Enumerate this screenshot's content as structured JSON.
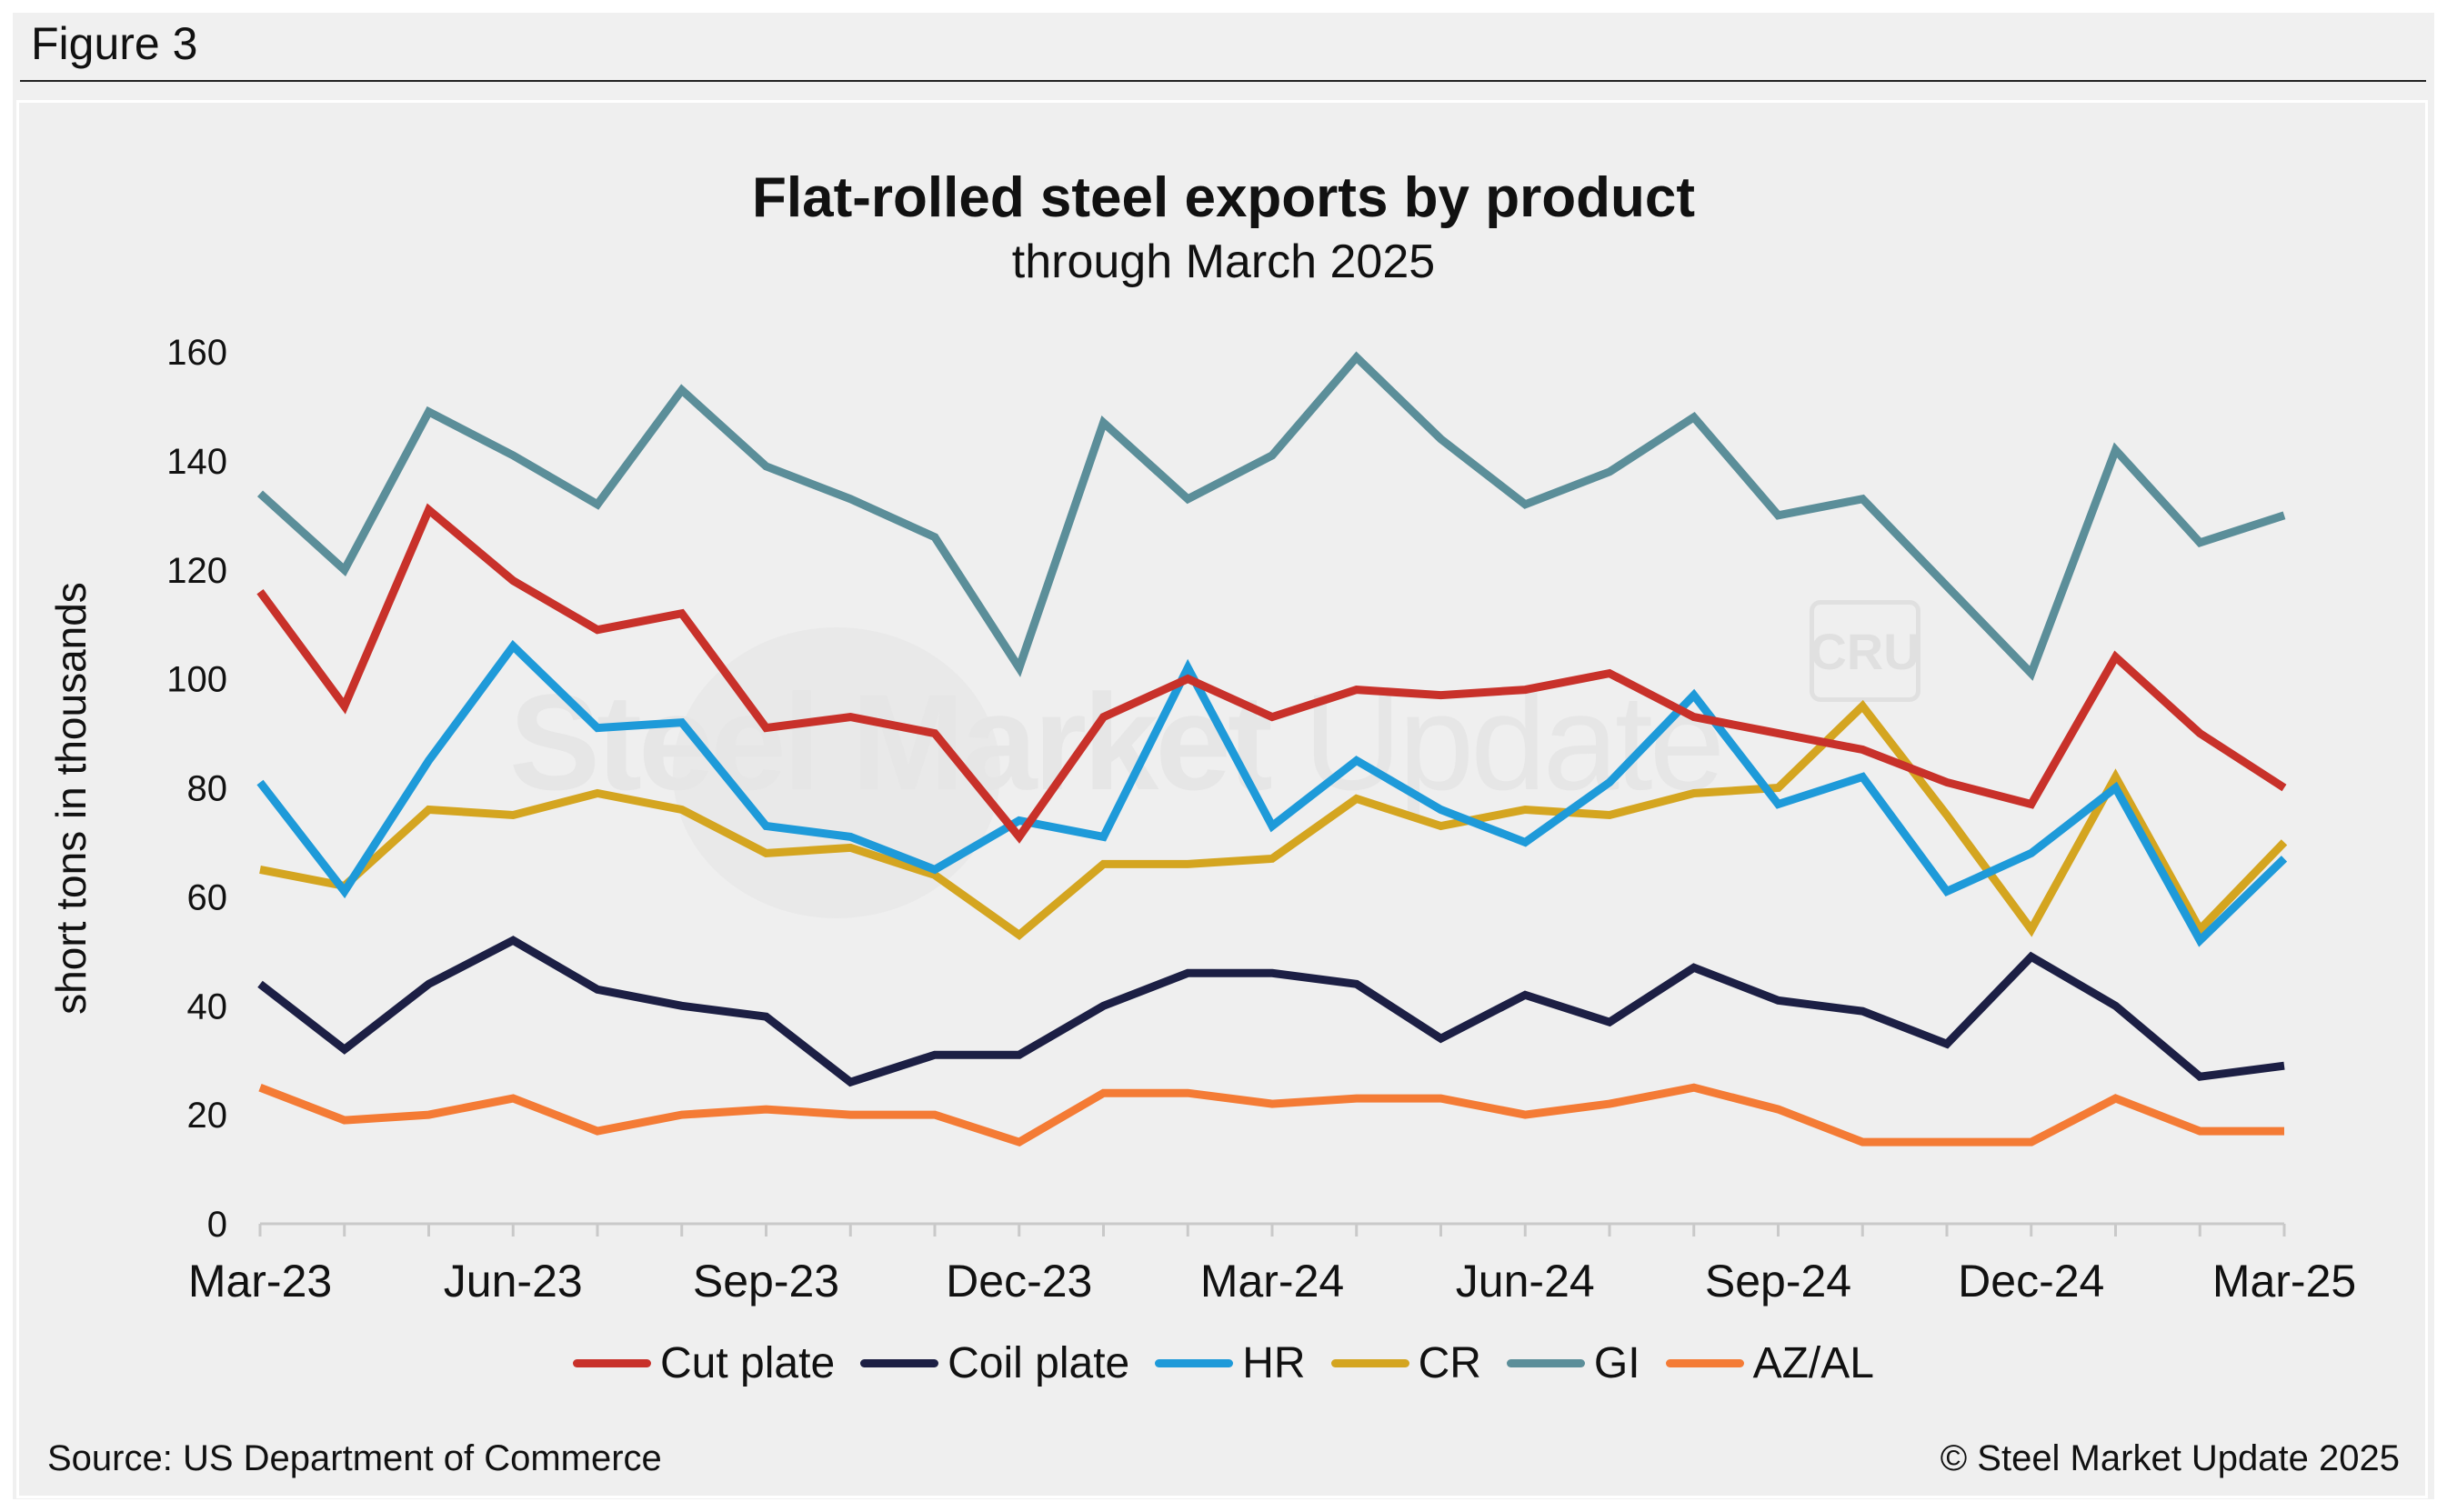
{
  "figure_label": "Figure 3",
  "watermark": {
    "text_bold": "Steel Market",
    "text_light": " Update",
    "badge": "CRU"
  },
  "source": "Source: US Department of Commerce",
  "copyright": "© Steel Market Update 2025",
  "chart_data": {
    "type": "line",
    "title": "Flat-rolled steel exports by product",
    "subtitle": "through March 2025",
    "xlabel": "",
    "ylabel": "short tons in thousands",
    "ylim": [
      0,
      160
    ],
    "yticks": [
      0,
      20,
      40,
      60,
      80,
      100,
      120,
      140,
      160
    ],
    "grid": false,
    "legend_position": "bottom",
    "x": [
      "Mar-23",
      "Apr-23",
      "May-23",
      "Jun-23",
      "Jul-23",
      "Aug-23",
      "Sep-23",
      "Oct-23",
      "Nov-23",
      "Dec-23",
      "Jan-24",
      "Feb-24",
      "Mar-24",
      "Apr-24",
      "May-24",
      "Jun-24",
      "Jul-24",
      "Aug-24",
      "Sep-24",
      "Oct-24",
      "Nov-24",
      "Dec-24",
      "Jan-25",
      "Feb-25",
      "Mar-25"
    ],
    "x_tick_labels": [
      "Mar-23",
      "Jun-23",
      "Sep-23",
      "Dec-23",
      "Mar-24",
      "Jun-24",
      "Sep-24",
      "Dec-24",
      "Mar-25"
    ],
    "series": [
      {
        "name": "Cut plate",
        "color": "#c8312a",
        "values": [
          116,
          95,
          131,
          118,
          109,
          112,
          91,
          93,
          90,
          71,
          93,
          100,
          93,
          98,
          97,
          98,
          101,
          93,
          90,
          87,
          81,
          77,
          104,
          90,
          80
        ]
      },
      {
        "name": "Coil plate",
        "color": "#1c1f44",
        "values": [
          44,
          32,
          44,
          52,
          43,
          40,
          38,
          26,
          31,
          31,
          40,
          46,
          46,
          44,
          34,
          42,
          37,
          47,
          41,
          39,
          33,
          49,
          40,
          27,
          29
        ]
      },
      {
        "name": "HR",
        "color": "#1e9ad9",
        "values": [
          81,
          61,
          85,
          106,
          91,
          92,
          73,
          71,
          65,
          74,
          71,
          102,
          73,
          85,
          76,
          70,
          81,
          97,
          77,
          82,
          61,
          68,
          80,
          52,
          67
        ]
      },
      {
        "name": "CR",
        "color": "#d4a520",
        "values": [
          65,
          62,
          76,
          75,
          79,
          76,
          68,
          69,
          64,
          53,
          66,
          66,
          67,
          78,
          73,
          76,
          75,
          79,
          80,
          95,
          75,
          54,
          82,
          54,
          70
        ]
      },
      {
        "name": "GI",
        "color": "#5b8e99",
        "values": [
          134,
          120,
          149,
          141,
          132,
          153,
          139,
          133,
          126,
          102,
          147,
          133,
          141,
          159,
          144,
          132,
          138,
          148,
          130,
          133,
          117,
          101,
          142,
          125,
          130
        ]
      },
      {
        "name": "AZ/AL",
        "color": "#f47b35",
        "values": [
          25,
          19,
          20,
          23,
          17,
          20,
          21,
          20,
          20,
          15,
          24,
          24,
          22,
          23,
          23,
          20,
          22,
          25,
          21,
          15,
          15,
          15,
          23,
          17,
          17
        ]
      }
    ]
  }
}
